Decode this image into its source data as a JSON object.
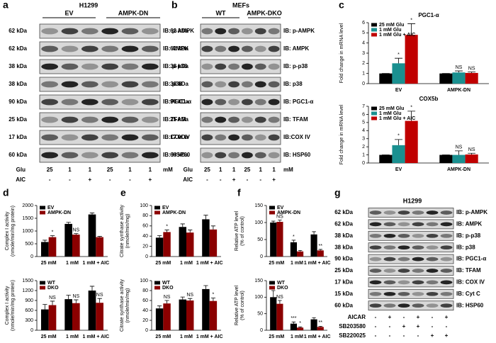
{
  "blots": [
    {
      "label": "a",
      "title": "H1299",
      "groups": [
        "EV",
        "AMPK-DN"
      ],
      "rows": [
        {
          "kda": "62 kDa",
          "ib": "IB: p-AMPK"
        },
        {
          "kda": "62 kDa",
          "ib": "IB: AMPK"
        },
        {
          "kda": "38 kDa",
          "ib": "IB: p-p38"
        },
        {
          "kda": "38 kDa",
          "ib": "IB: p38"
        },
        {
          "kda": "90 kDa",
          "ib": "IB:PGC1-α"
        },
        {
          "kda": "25 kDa",
          "ib": "IB:TFAM"
        },
        {
          "kda": "17 kDa",
          "ib": "IB:COX IV"
        },
        {
          "kda": "60 kDa",
          "ib": "IB: HSP60"
        }
      ],
      "treatments": [
        {
          "name": "Glu",
          "lanes": [
            "25",
            "1",
            "1",
            "25",
            "1",
            "1"
          ],
          "unit": "mM"
        },
        {
          "name": "AIC",
          "lanes": [
            "-",
            "-",
            "+",
            "-",
            "-",
            "+"
          ]
        }
      ]
    },
    {
      "label": "b",
      "title": "MEFs",
      "groups": [
        "WT",
        "AMPK-DKO"
      ],
      "rows": [
        {
          "kda": "62 kDa",
          "ib": "IB: p-AMPK"
        },
        {
          "kda": "62 kDa",
          "ib": "IB: AMPK"
        },
        {
          "kda": "38 kDa",
          "ib": "IB: p-p38"
        },
        {
          "kda": "38 kDa",
          "ib": "IB: p38"
        },
        {
          "kda": "90 kDa",
          "ib": "IB: PGC1-α"
        },
        {
          "kda": "25 kDa",
          "ib": "IB: TFAM"
        },
        {
          "kda": "17 kDa",
          "ib": "IB:COX IV"
        },
        {
          "kda": "60 kDa",
          "ib": "IB: HSP60"
        }
      ],
      "treatments": [
        {
          "name": "Glu",
          "lanes": [
            "25",
            "1",
            "1",
            "25",
            "1",
            "1"
          ],
          "unit": "mM"
        },
        {
          "name": "AIC",
          "lanes": [
            "-",
            "-",
            "+",
            "-",
            "-",
            "+"
          ]
        }
      ]
    },
    {
      "label": "g",
      "title": "H1299",
      "rows": [
        {
          "kda": "62 kDa",
          "ib": "IB: p-AMPK"
        },
        {
          "kda": "62 kDa",
          "ib": "IB: AMPK"
        },
        {
          "kda": "38 kDa",
          "ib": "IB: p-p38"
        },
        {
          "kda": "38 kDa",
          "ib": "IB: p38"
        },
        {
          "kda": "90 kDa",
          "ib": "IB: PGC1-α"
        },
        {
          "kda": "25 kDa",
          "ib": "IB: TFAM"
        },
        {
          "kda": "17 kDa",
          "ib": "IB: COX IV"
        },
        {
          "kda": "15 kDa",
          "ib": "IB: Cyt C"
        },
        {
          "kda": "60 kDa",
          "ib": "IB: HSP60"
        }
      ],
      "treatments": [
        {
          "name": "AICAR",
          "lanes": [
            "-",
            "+",
            "-",
            "+",
            "-",
            "+"
          ]
        },
        {
          "name": "SB203580",
          "lanes": [
            "-",
            "-",
            "+",
            "+",
            "-",
            "-"
          ]
        },
        {
          "name": "SB220025",
          "lanes": [
            "-",
            "-",
            "-",
            "-",
            "+",
            "+"
          ]
        }
      ]
    }
  ],
  "chart_data": [
    {
      "type": "bar",
      "label": "c",
      "title": "PGC1-α",
      "ylabel": [
        "Fold change in mRNA level"
      ],
      "categories": [
        "EV",
        "AMPK-DN"
      ],
      "series": [
        {
          "name": "25 mM Glu",
          "color": "#000000",
          "values": [
            1,
            1
          ],
          "errors": [
            0,
            0
          ],
          "sig": [
            null,
            null
          ]
        },
        {
          "name": "1 mM Glu",
          "color": "#1a9090",
          "values": [
            2,
            1.1
          ],
          "errors": [
            0.5,
            0.15
          ],
          "sig": [
            "*",
            "NS"
          ]
        },
        {
          "name": "1 mM Glu + AIC",
          "color": "#c00000",
          "values": [
            4.8,
            1.05
          ],
          "errors": [
            1.1,
            0.1
          ],
          "sig": [
            "*",
            "NS"
          ]
        }
      ],
      "ylim": [
        0,
        6
      ],
      "yticks": [
        0,
        1,
        2,
        3,
        4,
        5,
        6
      ],
      "legend": "upper left"
    },
    {
      "type": "bar",
      "title": "COX5b",
      "ylabel": [
        "Fold change in mRNA level"
      ],
      "categories": [
        "EV",
        "AMPK-DN"
      ],
      "series": [
        {
          "name": "25 mM Glu",
          "color": "#000000",
          "values": [
            1,
            1
          ],
          "errors": [
            0,
            0
          ],
          "sig": [
            null,
            null
          ]
        },
        {
          "name": "1 mM Glu",
          "color": "#1a9090",
          "values": [
            2.2,
            1
          ],
          "errors": [
            0.7,
            0.5
          ],
          "sig": [
            "*",
            "NS"
          ]
        },
        {
          "name": "1 mM Glu + AIC",
          "color": "#c00000",
          "values": [
            5.2,
            1.05
          ],
          "errors": [
            1.2,
            0.15
          ],
          "sig": [
            "*",
            "NS"
          ]
        }
      ],
      "ylim": [
        0,
        7
      ],
      "yticks": [
        0,
        1,
        2,
        3,
        4,
        5,
        6,
        7
      ],
      "legend": "upper left"
    },
    {
      "type": "bar",
      "label": "d",
      "ylabel": [
        "Complex I activity",
        "(nmole/min/mg protein)"
      ],
      "categories": [
        "25 mM",
        "1 mM",
        "1 mM + AIC"
      ],
      "series": [
        {
          "name": "EV",
          "color": "#000000",
          "values": [
            570,
            1280,
            1650
          ],
          "errors": [
            70,
            60,
            60
          ],
          "sig": [
            null,
            null,
            null
          ]
        },
        {
          "name": "AMPK-DN",
          "color": "#8b0000",
          "values": [
            760,
            860,
            760
          ],
          "errors": [
            60,
            40,
            30
          ],
          "sig": [
            "*",
            "NS",
            null
          ]
        }
      ],
      "ylim": [
        0,
        2000
      ],
      "yticks": [
        0,
        500,
        1000,
        1500,
        2000
      ],
      "legend": "upper left"
    },
    {
      "type": "bar",
      "ylabel": [
        "Complex I activity",
        "(nmole/min/mg protein)"
      ],
      "categories": [
        "25 mM",
        "1 mM",
        "1 mM + AIC"
      ],
      "series": [
        {
          "name": "WT",
          "color": "#000000",
          "values": [
            630,
            940,
            1200
          ],
          "errors": [
            150,
            120,
            130
          ],
          "sig": [
            null,
            null,
            null
          ]
        },
        {
          "name": "DKO",
          "color": "#8b0000",
          "values": [
            760,
            820,
            830
          ],
          "errors": [
            120,
            100,
            130
          ],
          "sig": [
            "NS",
            "NS",
            "NS"
          ]
        }
      ],
      "ylim": [
        0,
        1500
      ],
      "yticks": [
        0,
        300,
        600,
        900,
        1200,
        1500
      ],
      "legend": "upper left"
    },
    {
      "type": "bar",
      "label": "e",
      "ylabel": [
        "Citrate synthase activity",
        "(nmole/min/mg)"
      ],
      "categories": [
        "25 mM",
        "1 mM",
        "1 mM + AIC"
      ],
      "series": [
        {
          "name": "EV",
          "color": "#000000",
          "values": [
            37,
            58,
            73
          ],
          "errors": [
            4,
            6,
            8
          ],
          "sig": [
            null,
            null,
            null
          ]
        },
        {
          "name": "AMPK-DN",
          "color": "#8b0000",
          "values": [
            48,
            47,
            53
          ],
          "errors": [
            4,
            5,
            7
          ],
          "sig": [
            "*",
            null,
            null
          ]
        }
      ],
      "ylim": [
        0,
        100
      ],
      "yticks": [
        0,
        20,
        40,
        60,
        80,
        100
      ],
      "legend": "upper left"
    },
    {
      "type": "bar",
      "ylabel": [
        "Citrate synthase activity",
        "(nmole/min/mg)"
      ],
      "categories": [
        "25 mM",
        "1 mM",
        "1 mM + AIC"
      ],
      "series": [
        {
          "name": "WT",
          "color": "#000000",
          "values": [
            44,
            62,
            83
          ],
          "errors": [
            5,
            5,
            7
          ],
          "sig": [
            null,
            null,
            null
          ]
        },
        {
          "name": "DKO",
          "color": "#8b0000",
          "values": [
            54,
            60,
            59
          ],
          "errors": [
            6,
            4,
            6
          ],
          "sig": [
            "NS",
            "NS",
            "*"
          ]
        }
      ],
      "ylim": [
        0,
        100
      ],
      "yticks": [
        0,
        20,
        40,
        60,
        80,
        100
      ],
      "legend": "upper left"
    },
    {
      "type": "bar",
      "label": "f",
      "ylabel": [
        "Relative ATP level",
        "(% of control)"
      ],
      "categories": [
        "25 mM",
        "1 mM",
        "1 mM + AIC"
      ],
      "series": [
        {
          "name": "EV",
          "color": "#000000",
          "values": [
            100,
            42,
            65
          ],
          "errors": [
            4,
            6,
            8
          ],
          "sig": [
            null,
            "*",
            null
          ]
        },
        {
          "name": "AMPK-DN",
          "color": "#8b0000",
          "values": [
            102,
            15,
            18
          ],
          "errors": [
            5,
            3,
            3
          ],
          "sig": [
            "NS",
            null,
            "**"
          ]
        }
      ],
      "ylim": [
        0,
        150
      ],
      "yticks": [
        0,
        50,
        100,
        150
      ],
      "legend": "upper left"
    },
    {
      "type": "bar",
      "ylabel": [
        "Relative ATP level",
        "(% of control)"
      ],
      "categories": [
        "25 mM",
        "1 mM",
        "1 mM + AIC"
      ],
      "series": [
        {
          "name": "WT",
          "color": "#000000",
          "values": [
            100,
            20,
            33
          ],
          "errors": [
            20,
            5,
            5
          ],
          "sig": [
            null,
            "***",
            null
          ]
        },
        {
          "name": "DKO",
          "color": "#8b0000",
          "values": [
            80,
            8,
            10
          ],
          "errors": [
            10,
            2,
            2
          ],
          "sig": [
            "NS",
            "*",
            "**"
          ]
        }
      ],
      "ylim": [
        0,
        150
      ],
      "yticks": [
        0,
        50,
        100,
        150
      ],
      "legend": "upper left"
    }
  ]
}
